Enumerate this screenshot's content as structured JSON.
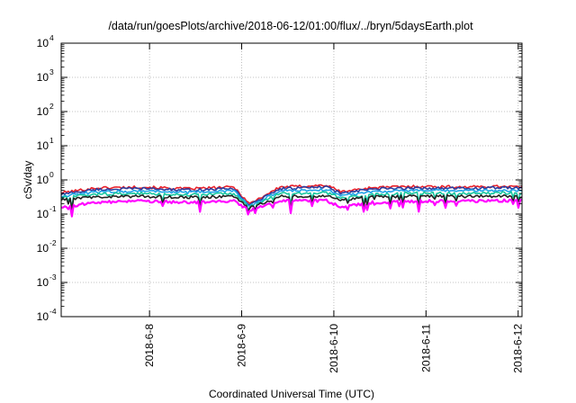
{
  "chart_data": {
    "type": "line",
    "title": "/data/run/goesPlots/archive/2018-06-12/01:00/flux/../bryn/5daysEarth.plot",
    "xlabel": "Coordinated Universal Time (UTC)",
    "ylabel": "cSv/day",
    "yscale": "log",
    "ylim": [
      0.0001,
      10000
    ],
    "y_ticks": [
      {
        "base": "10",
        "exp": "-4",
        "value": 0.0001
      },
      {
        "base": "10",
        "exp": "-3",
        "value": 0.001
      },
      {
        "base": "10",
        "exp": "-2",
        "value": 0.01
      },
      {
        "base": "10",
        "exp": "-1",
        "value": 0.1
      },
      {
        "base": "10",
        "exp": "0",
        "value": 1
      },
      {
        "base": "10",
        "exp": "1",
        "value": 10
      },
      {
        "base": "10",
        "exp": "2",
        "value": 100
      },
      {
        "base": "10",
        "exp": "3",
        "value": 1000
      },
      {
        "base": "10",
        "exp": "4",
        "value": 10000
      }
    ],
    "xlim": [
      "2018-06-07 01:00",
      "2018-06-12 01:00"
    ],
    "x_ticks": [
      {
        "label": "2018-6-8",
        "value": "2018-06-08"
      },
      {
        "label": "2018-6-9",
        "value": "2018-06-09"
      },
      {
        "label": "2018-6-10",
        "value": "2018-06-10"
      },
      {
        "label": "2018-6-11",
        "value": "2018-06-11"
      },
      {
        "label": "2018-6-12",
        "value": "2018-06-12"
      }
    ],
    "grid": true,
    "series_colors": [
      "#e8202a",
      "#2c3e9e",
      "#1fa3e8",
      "#17c8a0",
      "#222222",
      "#ff00ff"
    ],
    "series": [
      {
        "color": "#e8202a",
        "x": [
          "2018-06-07 01:00",
          "2018-06-07 10:00",
          "2018-06-07 22:00",
          "2018-06-08 10:00",
          "2018-06-08 22:00",
          "2018-06-09 02:00",
          "2018-06-09 10:00",
          "2018-06-09 22:00",
          "2018-06-10 02:00",
          "2018-06-10 10:00",
          "2018-06-10 22:00",
          "2018-06-11 10:00",
          "2018-06-11 22:00",
          "2018-06-12 01:00"
        ],
        "y": [
          0.42,
          0.58,
          0.62,
          0.55,
          0.62,
          0.2,
          0.62,
          0.7,
          0.45,
          0.6,
          0.65,
          0.62,
          0.66,
          0.6
        ]
      },
      {
        "color": "#2c3e9e",
        "x": [
          "2018-06-07 01:00",
          "2018-06-07 10:00",
          "2018-06-07 22:00",
          "2018-06-08 10:00",
          "2018-06-08 22:00",
          "2018-06-09 02:00",
          "2018-06-09 10:00",
          "2018-06-09 22:00",
          "2018-06-10 02:00",
          "2018-06-10 10:00",
          "2018-06-10 22:00",
          "2018-06-11 10:00",
          "2018-06-11 22:00",
          "2018-06-12 01:00"
        ],
        "y": [
          0.38,
          0.52,
          0.56,
          0.5,
          0.56,
          0.18,
          0.56,
          0.62,
          0.4,
          0.54,
          0.58,
          0.56,
          0.6,
          0.55
        ]
      },
      {
        "color": "#1fa3e8",
        "x": [
          "2018-06-07 01:00",
          "2018-06-07 10:00",
          "2018-06-07 22:00",
          "2018-06-08 10:00",
          "2018-06-08 22:00",
          "2018-06-09 02:00",
          "2018-06-09 10:00",
          "2018-06-09 22:00",
          "2018-06-10 02:00",
          "2018-06-10 10:00",
          "2018-06-10 22:00",
          "2018-06-11 10:00",
          "2018-06-11 22:00",
          "2018-06-12 01:00"
        ],
        "y": [
          0.34,
          0.44,
          0.48,
          0.43,
          0.48,
          0.17,
          0.48,
          0.52,
          0.35,
          0.46,
          0.49,
          0.48,
          0.5,
          0.47
        ]
      },
      {
        "color": "#17c8a0",
        "x": [
          "2018-06-07 01:00",
          "2018-06-07 10:00",
          "2018-06-07 22:00",
          "2018-06-08 10:00",
          "2018-06-08 22:00",
          "2018-06-09 02:00",
          "2018-06-09 10:00",
          "2018-06-09 22:00",
          "2018-06-10 02:00",
          "2018-06-10 10:00",
          "2018-06-10 22:00",
          "2018-06-11 10:00",
          "2018-06-11 22:00",
          "2018-06-12 01:00"
        ],
        "y": [
          0.3,
          0.38,
          0.4,
          0.37,
          0.4,
          0.16,
          0.4,
          0.42,
          0.3,
          0.38,
          0.41,
          0.4,
          0.42,
          0.4
        ]
      },
      {
        "color": "#222222",
        "x": [
          "2018-06-07 01:00",
          "2018-06-07 10:00",
          "2018-06-07 22:00",
          "2018-06-08 10:00",
          "2018-06-08 22:00",
          "2018-06-09 02:00",
          "2018-06-09 10:00",
          "2018-06-09 22:00",
          "2018-06-10 02:00",
          "2018-06-10 10:00",
          "2018-06-10 22:00",
          "2018-06-11 10:00",
          "2018-06-11 22:00",
          "2018-06-12 01:00"
        ],
        "y": [
          0.26,
          0.32,
          0.33,
          0.31,
          0.33,
          0.15,
          0.33,
          0.34,
          0.26,
          0.32,
          0.34,
          0.33,
          0.34,
          0.33
        ]
      },
      {
        "color": "#ff00ff",
        "x": [
          "2018-06-07 01:00",
          "2018-06-07 10:00",
          "2018-06-07 22:00",
          "2018-06-08 10:00",
          "2018-06-08 22:00",
          "2018-06-09 02:00",
          "2018-06-09 10:00",
          "2018-06-09 22:00",
          "2018-06-10 02:00",
          "2018-06-10 10:00",
          "2018-06-10 22:00",
          "2018-06-11 10:00",
          "2018-06-11 22:00",
          "2018-06-12 01:00"
        ],
        "y": [
          0.16,
          0.22,
          0.24,
          0.22,
          0.24,
          0.13,
          0.24,
          0.25,
          0.16,
          0.22,
          0.24,
          0.24,
          0.25,
          0.24
        ]
      }
    ]
  }
}
